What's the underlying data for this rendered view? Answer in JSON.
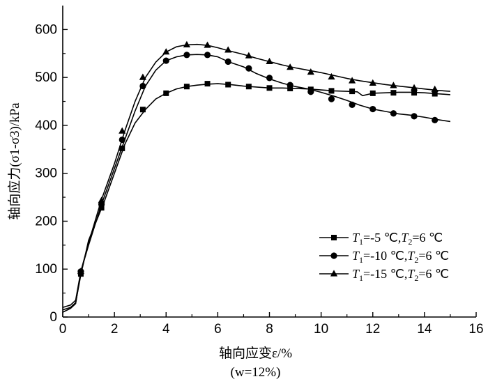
{
  "chart_data": {
    "type": "line",
    "xlabel": "轴向应变ε/%",
    "xlabel_sub": "(w=12%)",
    "ylabel": "轴向应力(σ1-σ3)/kPa",
    "xlim": [
      0,
      16
    ],
    "ylim": [
      0,
      650
    ],
    "x_ticks": [
      0,
      2,
      4,
      6,
      8,
      10,
      12,
      14,
      16
    ],
    "y_ticks": [
      0,
      100,
      200,
      300,
      400,
      500,
      600
    ],
    "x_tick_labels": [
      "0",
      "2",
      "4",
      "6",
      "8",
      "10",
      "12",
      "14",
      "16"
    ],
    "y_tick_labels": [
      "0",
      "100",
      "200",
      "300",
      "400",
      "500",
      "600"
    ],
    "legend_position": "lower-right",
    "series": [
      {
        "name": "T1=-5 ℃,T2=6 ℃",
        "legend_parts": [
          "T",
          "1",
          "=-5 ℃,",
          "T",
          "2",
          "=6 ℃"
        ],
        "marker": "square",
        "line_x": [
          0,
          0.3,
          0.5,
          0.7,
          1,
          1.3,
          1.6,
          2,
          2.4,
          2.8,
          3.2,
          3.6,
          4,
          4.4,
          4.8,
          5.2,
          5.6,
          6,
          6.5,
          7,
          7.5,
          8,
          8.5,
          9,
          9.5,
          10,
          10.5,
          11,
          11.4,
          11.6,
          12,
          12.5,
          13,
          13.5,
          14,
          14.5,
          15
        ],
        "line_y": [
          15,
          20,
          30,
          88,
          160,
          200,
          240,
          300,
          360,
          405,
          433,
          455,
          467,
          476,
          481,
          484,
          486,
          487,
          485,
          482,
          480,
          478,
          478,
          477,
          476,
          474,
          472,
          471,
          470,
          462,
          467,
          468,
          469,
          469,
          468,
          466,
          464
        ],
        "marker_x": [
          0.7,
          1.5,
          2.3,
          3.1,
          4.0,
          4.8,
          5.6,
          6.4,
          7.2,
          8.0,
          8.8,
          9.6,
          10.4,
          11.2,
          12.0,
          12.8,
          13.6,
          14.4
        ],
        "marker_y": [
          90,
          228,
          352,
          433,
          467,
          481,
          487,
          485,
          481,
          478,
          477,
          475,
          472,
          471,
          467,
          468,
          468,
          466
        ]
      },
      {
        "name": "T1=-10 ℃,T2=6 ℃",
        "legend_parts": [
          "T",
          "1",
          "=-10 ℃,",
          "T",
          "2",
          "=6 ℃"
        ],
        "marker": "circle",
        "line_x": [
          0,
          0.3,
          0.5,
          0.7,
          1,
          1.5,
          2,
          2.4,
          2.8,
          3.2,
          3.6,
          4,
          4.4,
          4.8,
          5.2,
          5.6,
          6,
          6.4,
          7,
          7.5,
          8,
          8.5,
          9,
          9.5,
          10,
          10.5,
          11,
          11.5,
          12,
          12.5,
          13,
          13.5,
          14,
          14.5,
          15
        ],
        "line_y": [
          10,
          18,
          28,
          95,
          150,
          235,
          310,
          370,
          430,
          482,
          515,
          535,
          543,
          547,
          548,
          547,
          543,
          533,
          522,
          508,
          497,
          488,
          481,
          476,
          469,
          461,
          452,
          442,
          434,
          429,
          424,
          421,
          417,
          412,
          408
        ],
        "marker_x": [
          0.7,
          1.5,
          2.3,
          3.1,
          4.0,
          4.8,
          5.6,
          6.4,
          7.2,
          8.0,
          8.8,
          9.6,
          10.4,
          11.2,
          12.0,
          12.8,
          13.6,
          14.4
        ],
        "marker_y": [
          95,
          235,
          370,
          482,
          535,
          547,
          547,
          533,
          519,
          499,
          484,
          470,
          455,
          443,
          434,
          425,
          419,
          411
        ]
      },
      {
        "name": "T1=-15 ℃,T2=6 ℃",
        "legend_parts": [
          "T",
          "1",
          "=-15 ℃,",
          "T",
          "2",
          "=6 ℃"
        ],
        "marker": "triangle",
        "line_x": [
          0,
          0.3,
          0.5,
          0.7,
          1,
          1.5,
          2,
          2.4,
          2.8,
          3.2,
          3.6,
          4,
          4.4,
          4.8,
          5.2,
          5.6,
          6,
          6.4,
          7,
          7.5,
          8,
          8.5,
          9,
          9.5,
          10,
          10.5,
          11,
          11.5,
          12,
          12.5,
          13,
          13.5,
          14,
          14.5,
          15
        ],
        "line_y": [
          20,
          25,
          35,
          95,
          155,
          245,
          320,
          388,
          450,
          500,
          532,
          553,
          564,
          568,
          569,
          567,
          562,
          556,
          548,
          540,
          533,
          526,
          520,
          515,
          510,
          504,
          498,
          493,
          489,
          485,
          482,
          479,
          476,
          473,
          471
        ],
        "marker_x": [
          0.7,
          1.5,
          2.3,
          3.1,
          4.0,
          4.8,
          5.6,
          6.4,
          7.2,
          8.0,
          8.8,
          9.6,
          10.4,
          11.2,
          12.0,
          12.8,
          13.6,
          14.4
        ],
        "marker_y": [
          95,
          243,
          388,
          500,
          553,
          568,
          567,
          557,
          545,
          533,
          521,
          511,
          501,
          493,
          488,
          483,
          478,
          475
        ]
      }
    ]
  }
}
